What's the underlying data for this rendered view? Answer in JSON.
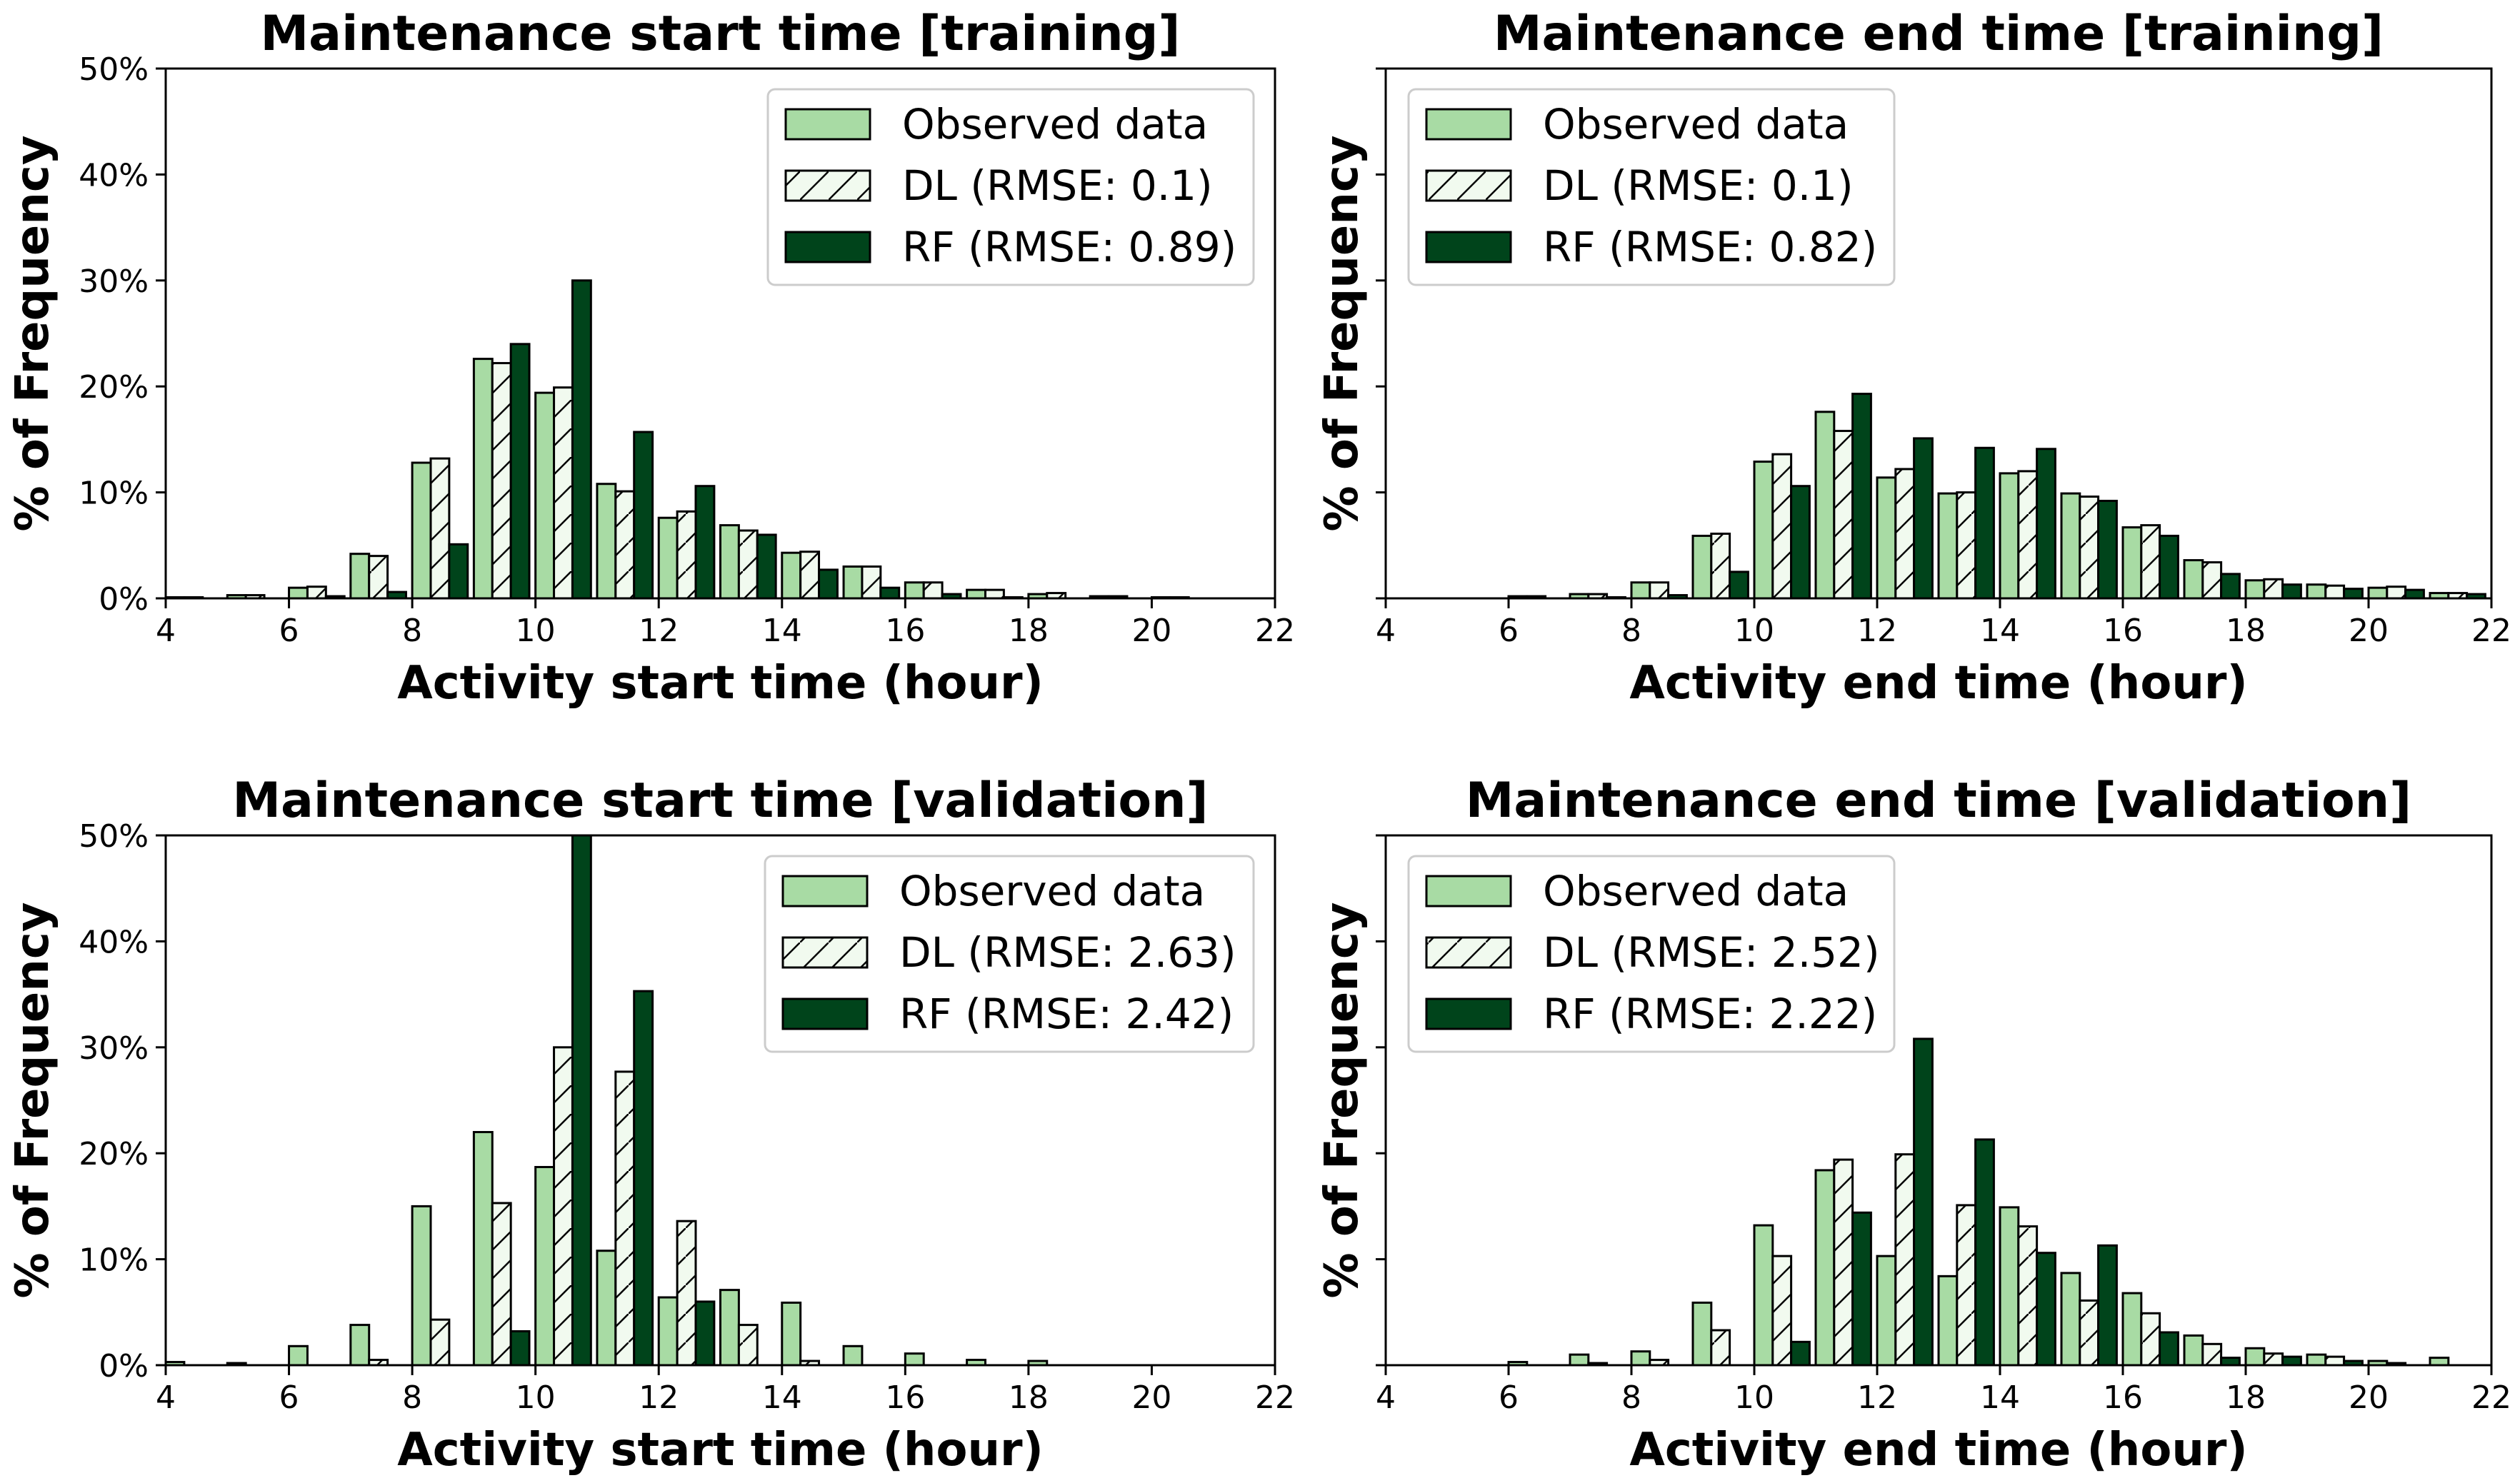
{
  "colors": {
    "observed": "#a8dba4",
    "dl": "#f1faef",
    "rf": "#00441b",
    "edge": "#000000"
  },
  "chart_data": [
    {
      "type": "bar",
      "title": "Maintenance start time [training]",
      "xlabel": "Activity start time (hour)",
      "ylabel": "% of Frequency",
      "xlim": [
        4,
        22
      ],
      "ylim": [
        0,
        50
      ],
      "xticks": [
        4,
        6,
        8,
        10,
        12,
        14,
        16,
        18,
        20,
        22
      ],
      "yticks": [
        0,
        10,
        20,
        30,
        40,
        50
      ],
      "ytick_labels": [
        "0%",
        "10%",
        "20%",
        "30%",
        "40%",
        "50%"
      ],
      "legend": "top-right",
      "categories": [
        4,
        5,
        6,
        7,
        8,
        9,
        10,
        11,
        12,
        13,
        14,
        15,
        16,
        17,
        18,
        19,
        20,
        21
      ],
      "series": [
        {
          "name": "Observed data",
          "values": [
            0.1,
            0.3,
            1.0,
            4.2,
            12.8,
            22.6,
            19.4,
            10.8,
            7.6,
            6.9,
            4.3,
            3.0,
            1.5,
            0.8,
            0.4,
            0.2,
            0.1,
            0.0
          ]
        },
        {
          "name": "DL (RMSE: 0.1)",
          "values": [
            0.1,
            0.3,
            1.1,
            4.0,
            13.2,
            22.2,
            19.9,
            10.1,
            8.2,
            6.4,
            4.4,
            3.0,
            1.5,
            0.8,
            0.5,
            0.2,
            0.1,
            0.0
          ]
        },
        {
          "name": "RF (RMSE: 0.89)",
          "values": [
            0.0,
            0.0,
            0.2,
            0.6,
            5.1,
            24.0,
            30.0,
            15.7,
            10.6,
            6.0,
            2.7,
            1.0,
            0.4,
            0.1,
            0.0,
            0.0,
            0.0,
            0.0
          ]
        }
      ]
    },
    {
      "type": "bar",
      "title": "Maintenance end time [training]",
      "xlabel": "Activity end time (hour)",
      "ylabel": "% of Frequency",
      "xlim": [
        4,
        22
      ],
      "ylim": [
        0,
        50
      ],
      "xticks": [
        4,
        6,
        8,
        10,
        12,
        14,
        16,
        18,
        20,
        22
      ],
      "yticks": [
        0,
        10,
        20,
        30,
        40,
        50
      ],
      "ytick_labels": [],
      "legend": "top-left",
      "categories": [
        4,
        5,
        6,
        7,
        8,
        9,
        10,
        11,
        12,
        13,
        14,
        15,
        16,
        17,
        18,
        19,
        20,
        21
      ],
      "series": [
        {
          "name": "Observed data",
          "values": [
            0.0,
            0.0,
            0.2,
            0.4,
            1.5,
            5.9,
            12.9,
            17.6,
            11.4,
            9.9,
            11.8,
            9.9,
            6.7,
            3.6,
            1.7,
            1.3,
            1.0,
            0.5
          ]
        },
        {
          "name": "DL (RMSE: 0.1)",
          "values": [
            0.0,
            0.0,
            0.2,
            0.4,
            1.5,
            6.1,
            13.6,
            15.8,
            12.2,
            10.0,
            12.0,
            9.6,
            6.9,
            3.4,
            1.8,
            1.2,
            1.1,
            0.5
          ]
        },
        {
          "name": "RF (RMSE: 0.82)",
          "values": [
            0.0,
            0.0,
            0.0,
            0.1,
            0.3,
            2.5,
            10.6,
            19.3,
            15.1,
            14.2,
            14.1,
            9.2,
            5.9,
            2.3,
            1.3,
            0.9,
            0.8,
            0.4
          ]
        }
      ]
    },
    {
      "type": "bar",
      "title": "Maintenance start time [validation]",
      "xlabel": "Activity start time (hour)",
      "ylabel": "% of Frequency",
      "xlim": [
        4,
        22
      ],
      "ylim": [
        0,
        50
      ],
      "xticks": [
        4,
        6,
        8,
        10,
        12,
        14,
        16,
        18,
        20,
        22
      ],
      "yticks": [
        0,
        10,
        20,
        30,
        40,
        50
      ],
      "ytick_labels": [
        "0%",
        "10%",
        "20%",
        "30%",
        "40%",
        "50%"
      ],
      "legend": "top-right",
      "categories": [
        4,
        5,
        6,
        7,
        8,
        9,
        10,
        11,
        12,
        13,
        14,
        15,
        16,
        17,
        18,
        19,
        20,
        21
      ],
      "series": [
        {
          "name": "Observed data",
          "values": [
            0.3,
            0.2,
            1.8,
            3.8,
            15.0,
            22.0,
            18.7,
            10.8,
            6.4,
            7.1,
            5.9,
            1.8,
            1.1,
            0.5,
            0.4,
            0.0,
            0.0,
            0.0
          ]
        },
        {
          "name": "DL (RMSE: 2.63)",
          "values": [
            0.0,
            0.0,
            0.0,
            0.5,
            4.3,
            15.3,
            30.0,
            27.7,
            13.6,
            3.8,
            0.4,
            0.0,
            0.0,
            0.0,
            0.0,
            0.0,
            0.0,
            0.0
          ]
        },
        {
          "name": "RF (RMSE: 2.42)",
          "values": [
            0.0,
            0.0,
            0.0,
            0.0,
            0.0,
            3.2,
            50.0,
            35.3,
            6.0,
            0.0,
            0.0,
            0.0,
            0.0,
            0.0,
            0.0,
            0.0,
            0.0,
            0.0
          ]
        }
      ]
    },
    {
      "type": "bar",
      "title": "Maintenance end time [validation]",
      "xlabel": "Activity end time (hour)",
      "ylabel": "% of Frequency",
      "xlim": [
        4,
        22
      ],
      "ylim": [
        0,
        50
      ],
      "xticks": [
        4,
        6,
        8,
        10,
        12,
        14,
        16,
        18,
        20,
        22
      ],
      "yticks": [
        0,
        10,
        20,
        30,
        40,
        50
      ],
      "ytick_labels": [],
      "legend": "top-left",
      "categories": [
        4,
        5,
        6,
        7,
        8,
        9,
        10,
        11,
        12,
        13,
        14,
        15,
        16,
        17,
        18,
        19,
        20,
        21
      ],
      "series": [
        {
          "name": "Observed data",
          "values": [
            0.0,
            0.0,
            0.3,
            1.0,
            1.3,
            5.9,
            13.2,
            18.4,
            10.3,
            8.4,
            14.9,
            8.7,
            6.8,
            2.8,
            1.6,
            1.0,
            0.4,
            0.7
          ]
        },
        {
          "name": "DL (RMSE: 2.52)",
          "values": [
            0.0,
            0.0,
            0.0,
            0.2,
            0.5,
            3.3,
            10.3,
            19.4,
            19.9,
            15.1,
            13.1,
            6.1,
            4.9,
            2.0,
            1.1,
            0.8,
            0.2,
            0.0
          ]
        },
        {
          "name": "RF (RMSE: 2.22)",
          "values": [
            0.0,
            0.0,
            0.0,
            0.0,
            0.0,
            0.0,
            2.2,
            14.4,
            30.8,
            21.3,
            10.6,
            11.3,
            3.1,
            0.7,
            0.8,
            0.4,
            0.0,
            0.0
          ]
        }
      ]
    }
  ]
}
